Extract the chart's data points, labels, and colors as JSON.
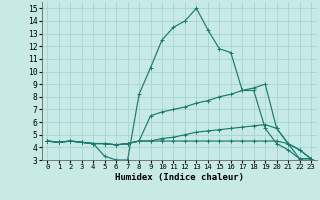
{
  "xlabel": "Humidex (Indice chaleur)",
  "xlim": [
    -0.5,
    23.5
  ],
  "ylim": [
    3,
    15.5
  ],
  "xticks": [
    0,
    1,
    2,
    3,
    4,
    5,
    6,
    7,
    8,
    9,
    10,
    11,
    12,
    13,
    14,
    15,
    16,
    17,
    18,
    19,
    20,
    21,
    22,
    23
  ],
  "yticks": [
    3,
    4,
    5,
    6,
    7,
    8,
    9,
    10,
    11,
    12,
    13,
    14,
    15
  ],
  "bg_color": "#c8eae6",
  "grid_color": "#a8d4d0",
  "line_color": "#1a7a6e",
  "lines": [
    {
      "x": [
        0,
        1,
        2,
        3,
        4,
        5,
        6,
        7,
        8,
        9,
        10,
        11,
        12,
        13,
        14,
        15,
        16,
        17,
        18,
        19,
        20,
        21,
        22,
        23
      ],
      "y": [
        4.5,
        4.4,
        4.5,
        4.4,
        4.3,
        3.3,
        3.0,
        3.0,
        8.2,
        10.3,
        12.5,
        13.5,
        14.0,
        15.0,
        13.3,
        11.8,
        11.5,
        8.5,
        8.5,
        5.5,
        4.3,
        3.8,
        3.1,
        3.1
      ]
    },
    {
      "x": [
        0,
        1,
        2,
        3,
        4,
        5,
        6,
        7,
        8,
        9,
        10,
        11,
        12,
        13,
        14,
        15,
        16,
        17,
        18,
        19,
        20,
        21,
        22,
        23
      ],
      "y": [
        4.5,
        4.4,
        4.5,
        4.4,
        4.3,
        4.3,
        4.2,
        4.3,
        4.5,
        6.5,
        6.8,
        7.0,
        7.2,
        7.5,
        7.7,
        8.0,
        8.2,
        8.5,
        8.7,
        9.0,
        5.5,
        4.3,
        3.1,
        3.1
      ]
    },
    {
      "x": [
        0,
        1,
        2,
        3,
        4,
        5,
        6,
        7,
        8,
        9,
        10,
        11,
        12,
        13,
        14,
        15,
        16,
        17,
        18,
        19,
        20,
        21,
        22,
        23
      ],
      "y": [
        4.5,
        4.4,
        4.5,
        4.4,
        4.3,
        4.3,
        4.2,
        4.3,
        4.5,
        4.5,
        4.7,
        4.8,
        5.0,
        5.2,
        5.3,
        5.4,
        5.5,
        5.6,
        5.7,
        5.8,
        5.5,
        4.3,
        3.8,
        3.1
      ]
    },
    {
      "x": [
        0,
        1,
        2,
        3,
        4,
        5,
        6,
        7,
        8,
        9,
        10,
        11,
        12,
        13,
        14,
        15,
        16,
        17,
        18,
        19,
        20,
        21,
        22,
        23
      ],
      "y": [
        4.5,
        4.4,
        4.5,
        4.4,
        4.3,
        4.3,
        4.2,
        4.3,
        4.5,
        4.5,
        4.5,
        4.5,
        4.5,
        4.5,
        4.5,
        4.5,
        4.5,
        4.5,
        4.5,
        4.5,
        4.5,
        4.3,
        3.8,
        3.1
      ]
    }
  ]
}
